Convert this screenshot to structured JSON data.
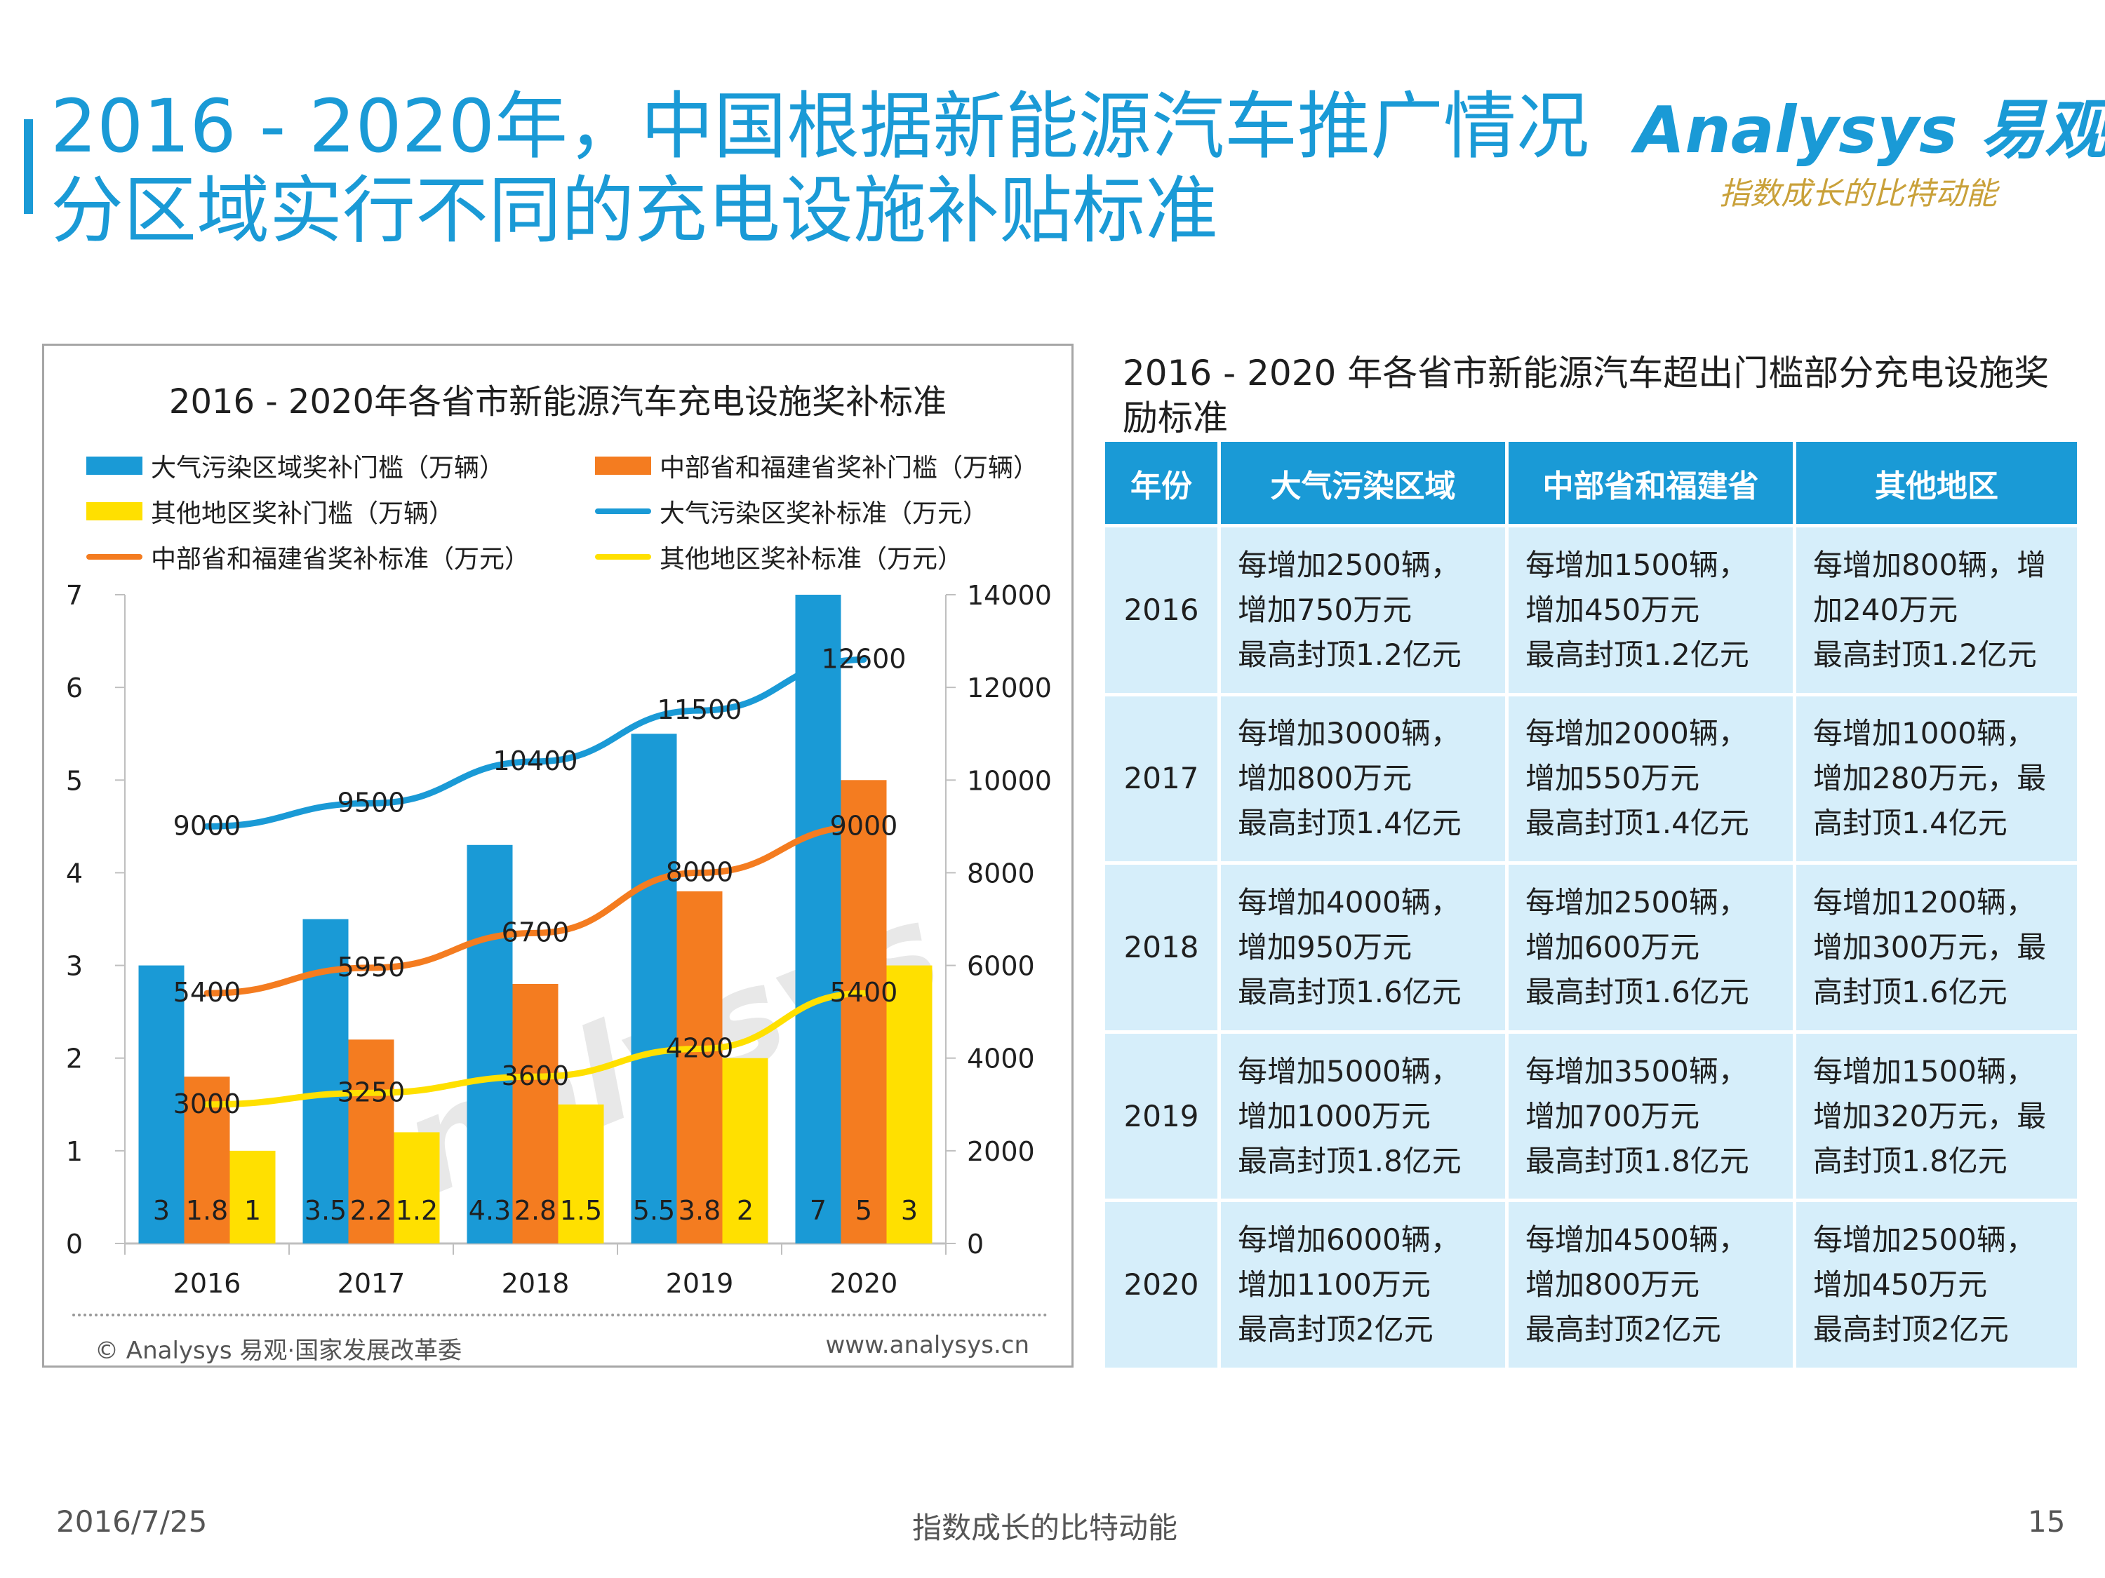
{
  "page": {
    "title_line1": "2016 - 2020年，中国根据新能源汽车推广情况",
    "title_line2": "分区域实行不同的充电设施补贴标准",
    "brand": "Analysys 易观",
    "slogan": "指数成长的比特动能",
    "accent_color": "#1a9ad6"
  },
  "chart_data": {
    "type": "bar",
    "title": "2016 - 2020年各省市新能源汽车充电设施奖补标准",
    "categories": [
      "2016",
      "2017",
      "2018",
      "2019",
      "2020"
    ],
    "series": [
      {
        "name": "大气污染区域奖补门槛（万辆）",
        "kind": "bar",
        "axis": "left",
        "color": "#1a9ad6",
        "values": [
          3,
          3.5,
          4.3,
          5.5,
          7
        ]
      },
      {
        "name": "中部省和福建省奖补门槛（万辆）",
        "kind": "bar",
        "axis": "left",
        "color": "#f47c20",
        "values": [
          1.8,
          2.2,
          2.8,
          3.8,
          5
        ]
      },
      {
        "name": "其他地区奖补门槛（万辆）",
        "kind": "bar",
        "axis": "left",
        "color": "#ffe000",
        "values": [
          1,
          1.2,
          1.5,
          2,
          3
        ]
      },
      {
        "name": "大气污染区奖补标准（万元）",
        "kind": "line",
        "axis": "right",
        "color": "#1a9ad6",
        "values": [
          9000,
          9500,
          10400,
          11500,
          12600
        ]
      },
      {
        "name": "中部省和福建省奖补标准（万元）",
        "kind": "line",
        "axis": "right",
        "color": "#f47c20",
        "values": [
          5400,
          5950,
          6700,
          8000,
          9000
        ]
      },
      {
        "name": "其他地区奖补标准（万元）",
        "kind": "line",
        "axis": "right",
        "color": "#ffe000",
        "values": [
          3000,
          3250,
          3600,
          4200,
          5400
        ]
      }
    ],
    "ylim_left": [
      0,
      7
    ],
    "yticks_left": [
      0,
      1,
      2,
      3,
      4,
      5,
      6,
      7
    ],
    "ylim_right": [
      0,
      14000
    ],
    "yticks_right": [
      0,
      2000,
      4000,
      6000,
      8000,
      10000,
      12000,
      14000
    ],
    "legend_position": "top",
    "grid": false,
    "source_left": "© Analysys 易观·国家发展改革委",
    "source_right": "www.analysys.cn",
    "watermark": "Analysys"
  },
  "table": {
    "title": "2016 - 2020 年各省市新能源汽车超出门槛部分充电设施奖励标准",
    "headers": [
      "年份",
      "大气污染区域",
      "中部省和福建省",
      "其他地区"
    ],
    "rows": [
      {
        "year": "2016",
        "cells": [
          [
            "每增加2500辆，",
            "增加750万元",
            "最高封顶1.2亿元"
          ],
          [
            "每增加1500辆，",
            "增加450万元",
            "最高封顶1.2亿元"
          ],
          [
            "每增加800辆，增",
            "加240万元",
            "最高封顶1.2亿元"
          ]
        ]
      },
      {
        "year": "2017",
        "cells": [
          [
            "每增加3000辆，",
            "增加800万元",
            "最高封顶1.4亿元"
          ],
          [
            "每增加2000辆，",
            "增加550万元",
            "最高封顶1.4亿元"
          ],
          [
            "每增加1000辆，",
            "增加280万元，最",
            "高封顶1.4亿元"
          ]
        ]
      },
      {
        "year": "2018",
        "cells": [
          [
            "每增加4000辆，",
            "增加950万元",
            "最高封顶1.6亿元"
          ],
          [
            "每增加2500辆，",
            "增加600万元",
            "最高封顶1.6亿元"
          ],
          [
            "每增加1200辆，",
            "增加300万元，最",
            "高封顶1.6亿元"
          ]
        ]
      },
      {
        "year": "2019",
        "cells": [
          [
            "每增加5000辆，",
            "增加1000万元",
            "最高封顶1.8亿元"
          ],
          [
            "每增加3500辆，",
            "增加700万元",
            "最高封顶1.8亿元"
          ],
          [
            "每增加1500辆，",
            "增加320万元，最",
            "高封顶1.8亿元"
          ]
        ]
      },
      {
        "year": "2020",
        "cells": [
          [
            "每增加6000辆，",
            "增加1100万元",
            "最高封顶2亿元"
          ],
          [
            "每增加4500辆，",
            "增加800万元",
            "最高封顶2亿元"
          ],
          [
            "每增加2500辆，",
            "增加450万元",
            "最高封顶2亿元"
          ]
        ]
      }
    ]
  },
  "footer": {
    "date": "2016/7/25",
    "center": "指数成长的比特动能",
    "page_number": "15"
  }
}
